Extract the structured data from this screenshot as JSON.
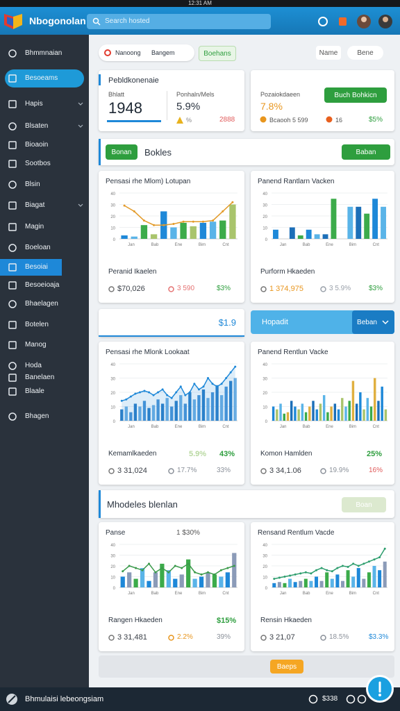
{
  "status_bar": {
    "time": "12:31 AM"
  },
  "header": {
    "app_name": "Nbogonolan",
    "search": "Search hosted"
  },
  "sidebar": {
    "items": [
      "Bhmmnaian",
      "Besoeams",
      "Hapis",
      "Blsaten",
      "Bioaoin",
      "Sootbos",
      "Blsin",
      "Biagat",
      "Magin",
      "Boeloan",
      "Besoiai",
      "Besoeioaja",
      "Bhaelagen",
      "Botelen",
      "Manog",
      "Hoda",
      "Banelaen",
      "Blaale",
      "Bhagen"
    ]
  },
  "toolbar": {
    "filter_1": "Nanoong",
    "filter_2": "Bangem",
    "tag": "Boehans",
    "sort": "Name",
    "view": "Bene"
  },
  "kpi_cards": [
    {
      "title": "Pebldkonenaie",
      "metric_label": "Bhlatt",
      "metric": "1948",
      "secondary_label": "Ponhaln/Mels",
      "secondary": "5.9%",
      "note": "%",
      "delta": "2888"
    },
    {
      "title": "Pozaiokdaeen",
      "metric": "7.8%",
      "button": "Buch Bohkicn",
      "note_1": "Bcaooh 5 599",
      "note_2": "16",
      "delta": "$5%"
    }
  ],
  "section_1": {
    "button": "Bonan",
    "title": "Bokles",
    "action": "Baban"
  },
  "banner": {
    "value": "$1.9",
    "title": "Hopadit",
    "button": "Beban"
  },
  "section_2": {
    "title": "Mhodeles blenlan",
    "button": "Boan"
  },
  "footer_panel": {
    "button": "Baeps"
  },
  "bottom_bar": {
    "title": "Bhmulaisi lebeongsiam",
    "value": "$338"
  },
  "charts": [
    {
      "title": "Pensasi rhe Mlom) Lotupan",
      "ylim": [
        0,
        40
      ],
      "yticks": [
        0,
        10,
        20,
        30,
        40
      ],
      "xlabels": [
        "Jan",
        "Bab",
        "Ene",
        "Bim",
        "Cnt"
      ],
      "palette": [
        "#1e88d8",
        "#5ab4e8",
        "#3cab4a",
        "#a9c46c"
      ],
      "bars": [
        3,
        2,
        12,
        4,
        24,
        10,
        14,
        11,
        14,
        15,
        16,
        30
      ],
      "line": [
        29,
        24,
        16,
        12,
        12,
        13,
        15,
        15,
        15,
        16,
        24,
        32
      ],
      "line_color": "#e39b2a",
      "area": false,
      "footer_label": "Peranid Ikaelen",
      "footer_stats": [],
      "stats": [
        {
          "text": "$70,026",
          "color": "#3a3f47"
        },
        {
          "text": "3 590",
          "color": "#e57373"
        },
        {
          "text": "$3%",
          "color": "#2e9e3e"
        }
      ]
    },
    {
      "title": "Panend Rantlarn Vacken",
      "ylim": [
        0,
        40
      ],
      "yticks": [
        0,
        10,
        20,
        30,
        40
      ],
      "xlabels": [
        "Jan",
        "Bab",
        "Ene",
        "Bim",
        "Cnt"
      ],
      "palette": [
        "#1e88d8",
        "#5ab4e8",
        "#1c6fb8",
        "#3cab4a"
      ],
      "bars": [
        8,
        0,
        10,
        3,
        8,
        4,
        4,
        35,
        0,
        28,
        28,
        22,
        35,
        28
      ],
      "footer_label": "Purform Hkaeden",
      "footer_stats": [],
      "stats": [
        {
          "text": "1 374,975",
          "color": "#e8961e"
        },
        {
          "text": "3 5.9%",
          "color": "#9aa1aa"
        },
        {
          "text": "$3%",
          "color": "#2e9e3e"
        }
      ]
    },
    {
      "title": "Pensasi rhe Mlonk Lookaat",
      "ylim": [
        0,
        40
      ],
      "yticks": [
        0,
        10,
        20,
        30,
        40
      ],
      "xlabels": [
        "Jan",
        "Bab",
        "Ene",
        "Bim",
        "Cnt"
      ],
      "palette": [
        "#2d7fc8",
        "#6fb0e4",
        "#4a95d8"
      ],
      "bars": [
        8,
        10,
        6,
        12,
        10,
        14,
        9,
        11,
        15,
        12,
        16,
        10,
        14,
        18,
        12,
        20,
        15,
        18,
        22,
        16,
        20,
        25,
        18,
        24,
        28,
        30
      ],
      "line": [
        14,
        15,
        17,
        19,
        20,
        21,
        20,
        18,
        20,
        22,
        18,
        16,
        20,
        24,
        18,
        20,
        26,
        22,
        24,
        30,
        26,
        24,
        26,
        30,
        34,
        38
      ],
      "line_color": "#1e88d8",
      "area": true,
      "footer_label": "Kemamlkaeden",
      "footer_stats": [
        {
          "text": "5.9%",
          "color": "#b8d8a0"
        },
        {
          "text": "43%",
          "color": "#2e9e3e"
        }
      ],
      "stats": [
        {
          "text": "3 31,024",
          "color": "#3a3f47"
        },
        {
          "text": "17.7%",
          "color": "#8a9099"
        },
        {
          "text": "33%",
          "color": "#8a9099"
        }
      ]
    },
    {
      "title": "Panend Rentlun Vacke",
      "ylim": [
        0,
        40
      ],
      "yticks": [
        0,
        10,
        20,
        30,
        40
      ],
      "xlabels": [
        "Jan",
        "Bab",
        "Ene",
        "Bim",
        "Cnt"
      ],
      "palette": [
        "#1e88d8",
        "#a9c46c",
        "#5ab4e8",
        "#3cab4a",
        "#e0b040",
        "#1c6fb8"
      ],
      "bars": [
        10,
        8,
        12,
        5,
        6,
        14,
        10,
        8,
        12,
        6,
        10,
        14,
        8,
        12,
        18,
        6,
        10,
        12,
        8,
        16,
        10,
        14,
        28,
        12,
        20,
        8,
        16,
        10,
        30,
        14,
        24,
        8
      ],
      "footer_label": "Komon Hamlden",
      "footer_stats": [
        {
          "text": "25%",
          "color": "#2e9e3e"
        }
      ],
      "stats": [
        {
          "text": "3 34,1.06",
          "color": "#3a3f47"
        },
        {
          "text": "19.9%",
          "color": "#8a9099"
        },
        {
          "text": "16%",
          "color": "#e05a5a"
        }
      ]
    },
    {
      "title": "Panse",
      "subtitle": "1 $30%",
      "ylim": [
        0,
        40
      ],
      "yticks": [
        0,
        10,
        20,
        30,
        40
      ],
      "xlabels": [
        "Jan",
        "Bab",
        "Ene",
        "Bim",
        "Cnt"
      ],
      "palette": [
        "#1e88d8",
        "#8b9bb8",
        "#3cab4a",
        "#5ab4e8"
      ],
      "bars": [
        10,
        14,
        8,
        18,
        6,
        14,
        22,
        16,
        8,
        12,
        26,
        8,
        10,
        14,
        12,
        10,
        14,
        32
      ],
      "line": [
        15,
        20,
        18,
        16,
        22,
        14,
        18,
        14,
        20,
        18,
        22,
        14,
        12,
        14,
        12,
        16,
        18,
        20
      ],
      "line_color": "#3a9a4a",
      "area": false,
      "footer_label": "Rangen Hkaeden",
      "footer_stats": [
        {
          "text": "$15%",
          "color": "#2e9e3e"
        }
      ],
      "stats": [
        {
          "text": "3 31,481",
          "color": "#3a3f47"
        },
        {
          "text": "2.2%",
          "color": "#e8961e"
        },
        {
          "text": "39%",
          "color": "#8a9099"
        }
      ]
    },
    {
      "title": "Rensand Rentlum Vacde",
      "ylim": [
        0,
        40
      ],
      "yticks": [
        0,
        10,
        20,
        30,
        40
      ],
      "xlabels": [
        "Jan",
        "Bab",
        "Ene",
        "Bim",
        "Cnt"
      ],
      "palette": [
        "#1e88d8",
        "#8b9bb8",
        "#3cab4a",
        "#5ab4e8"
      ],
      "bars": [
        4,
        5,
        4,
        8,
        5,
        6,
        8,
        6,
        10,
        6,
        14,
        8,
        12,
        6,
        16,
        10,
        18,
        8,
        14,
        20,
        16,
        24
      ],
      "line": [
        8,
        9,
        10,
        11,
        12,
        13,
        14,
        13,
        16,
        18,
        16,
        15,
        18,
        20,
        19,
        22,
        20,
        22,
        24,
        26,
        28,
        36
      ],
      "line_color": "#2e9e6e",
      "area": false,
      "footer_label": "Rensin Hkaeden",
      "footer_stats": [],
      "stats": [
        {
          "text": "3 21,07",
          "color": "#3a3f47"
        },
        {
          "text": "18.5%",
          "color": "#8a9099"
        },
        {
          "text": "$3.3%",
          "color": "#1e88d8"
        }
      ]
    }
  ]
}
